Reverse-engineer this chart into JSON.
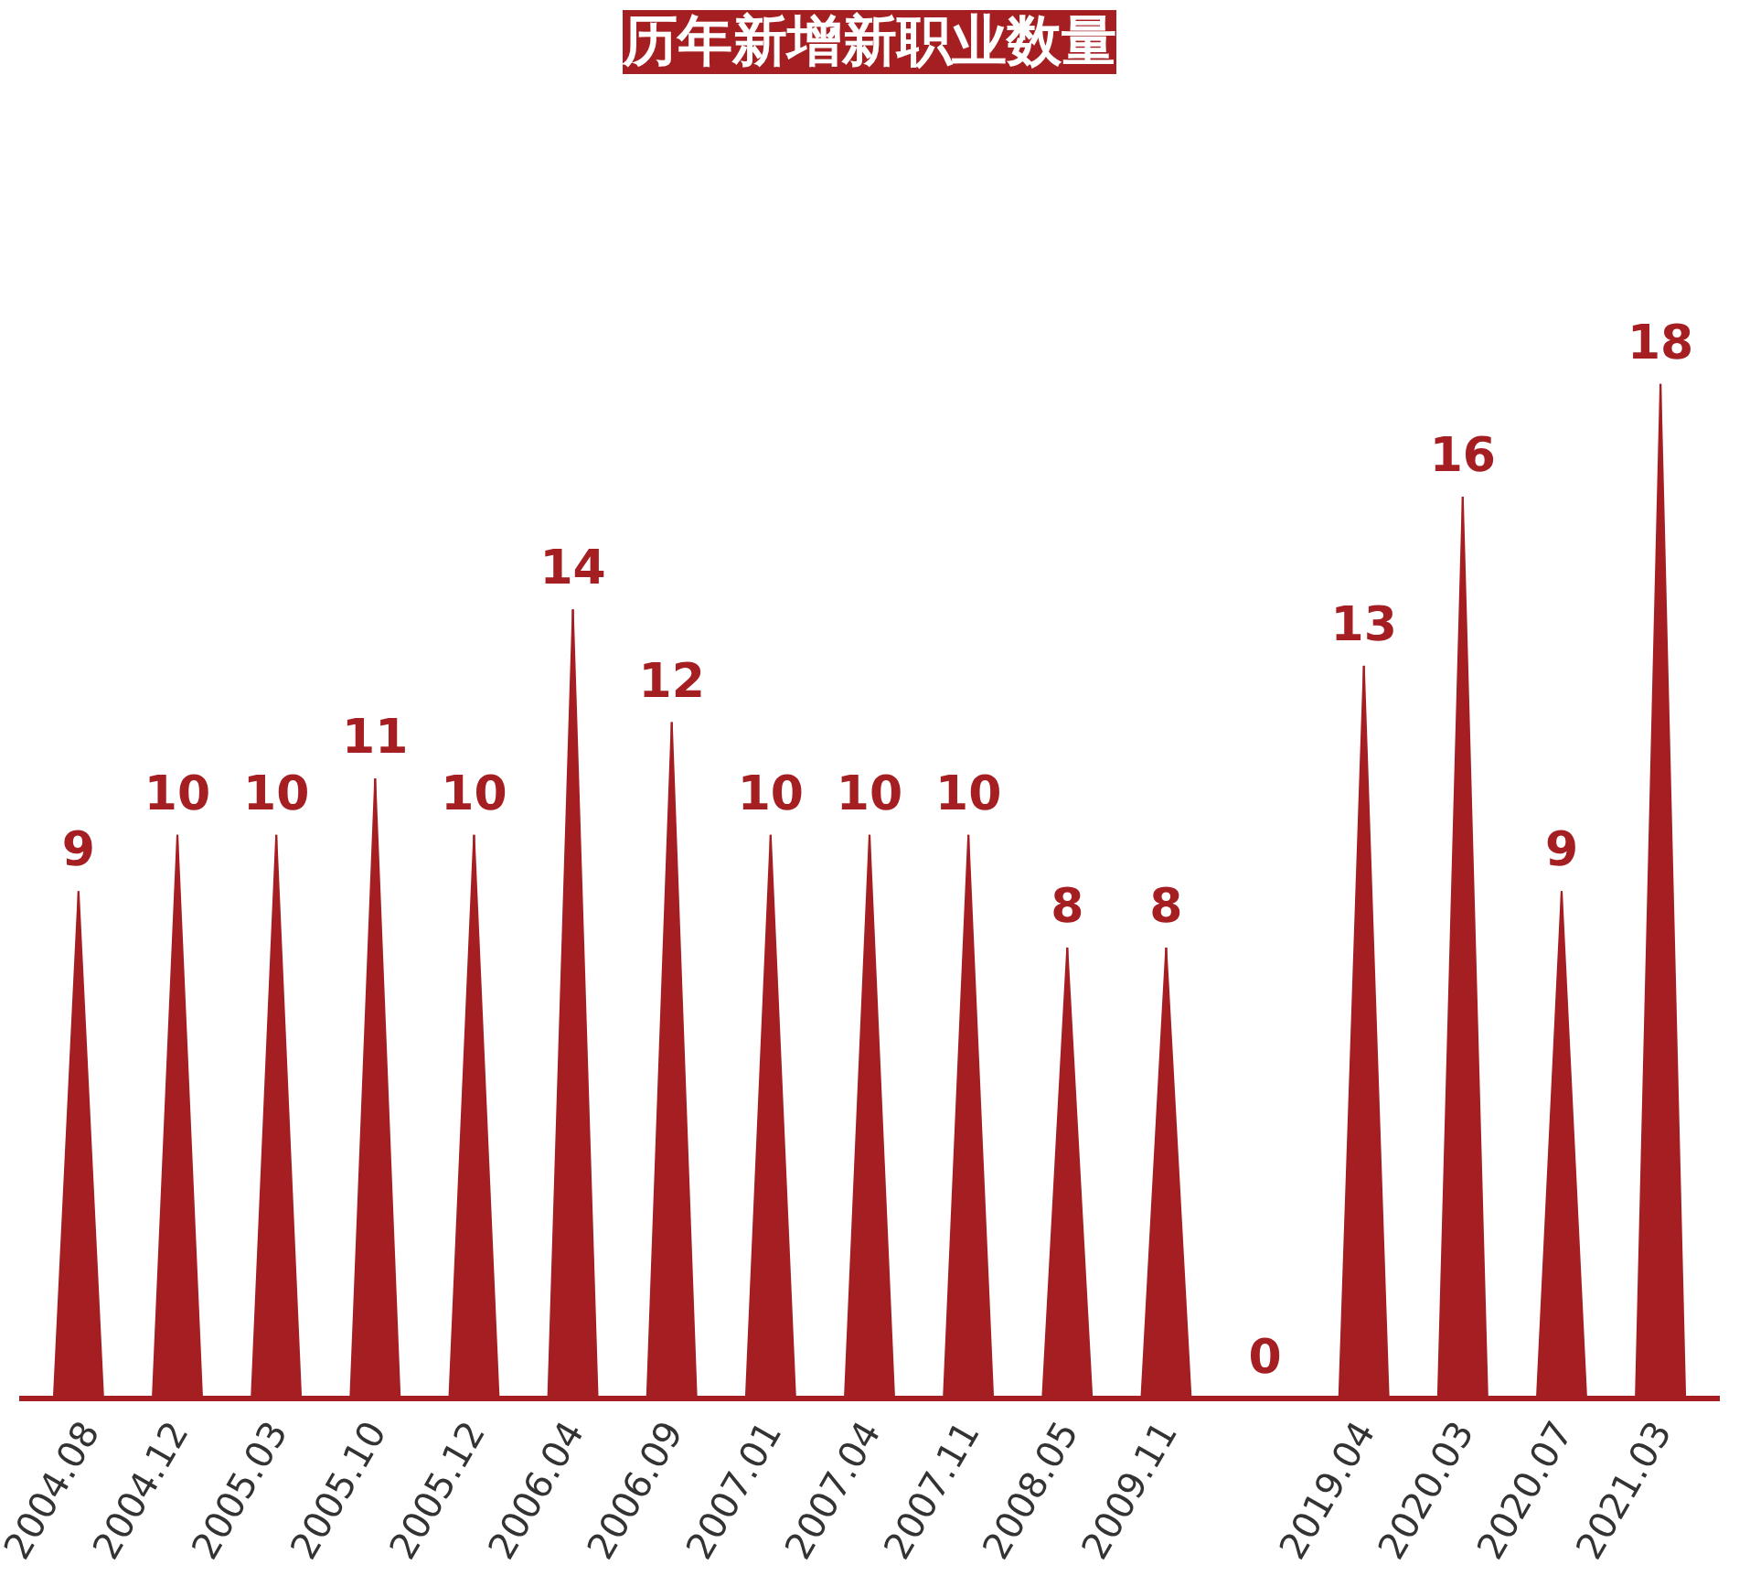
{
  "chart_data": {
    "type": "bar",
    "title": "历年新增新职业数量",
    "categories": [
      "2004.08",
      "2004.12",
      "2005.03",
      "2005.10",
      "2005.12",
      "2006.04",
      "2006.09",
      "2007.01",
      "2007.04",
      "2007.11",
      "2008.05",
      "2009.11",
      null,
      "2019.04",
      "2020.03",
      "2020.07",
      "2021.03"
    ],
    "values": [
      9,
      10,
      10,
      11,
      10,
      14,
      12,
      10,
      10,
      10,
      8,
      8,
      0,
      13,
      16,
      9,
      18
    ],
    "color": "#a51f22",
    "data_labels": true,
    "grid": false
  }
}
